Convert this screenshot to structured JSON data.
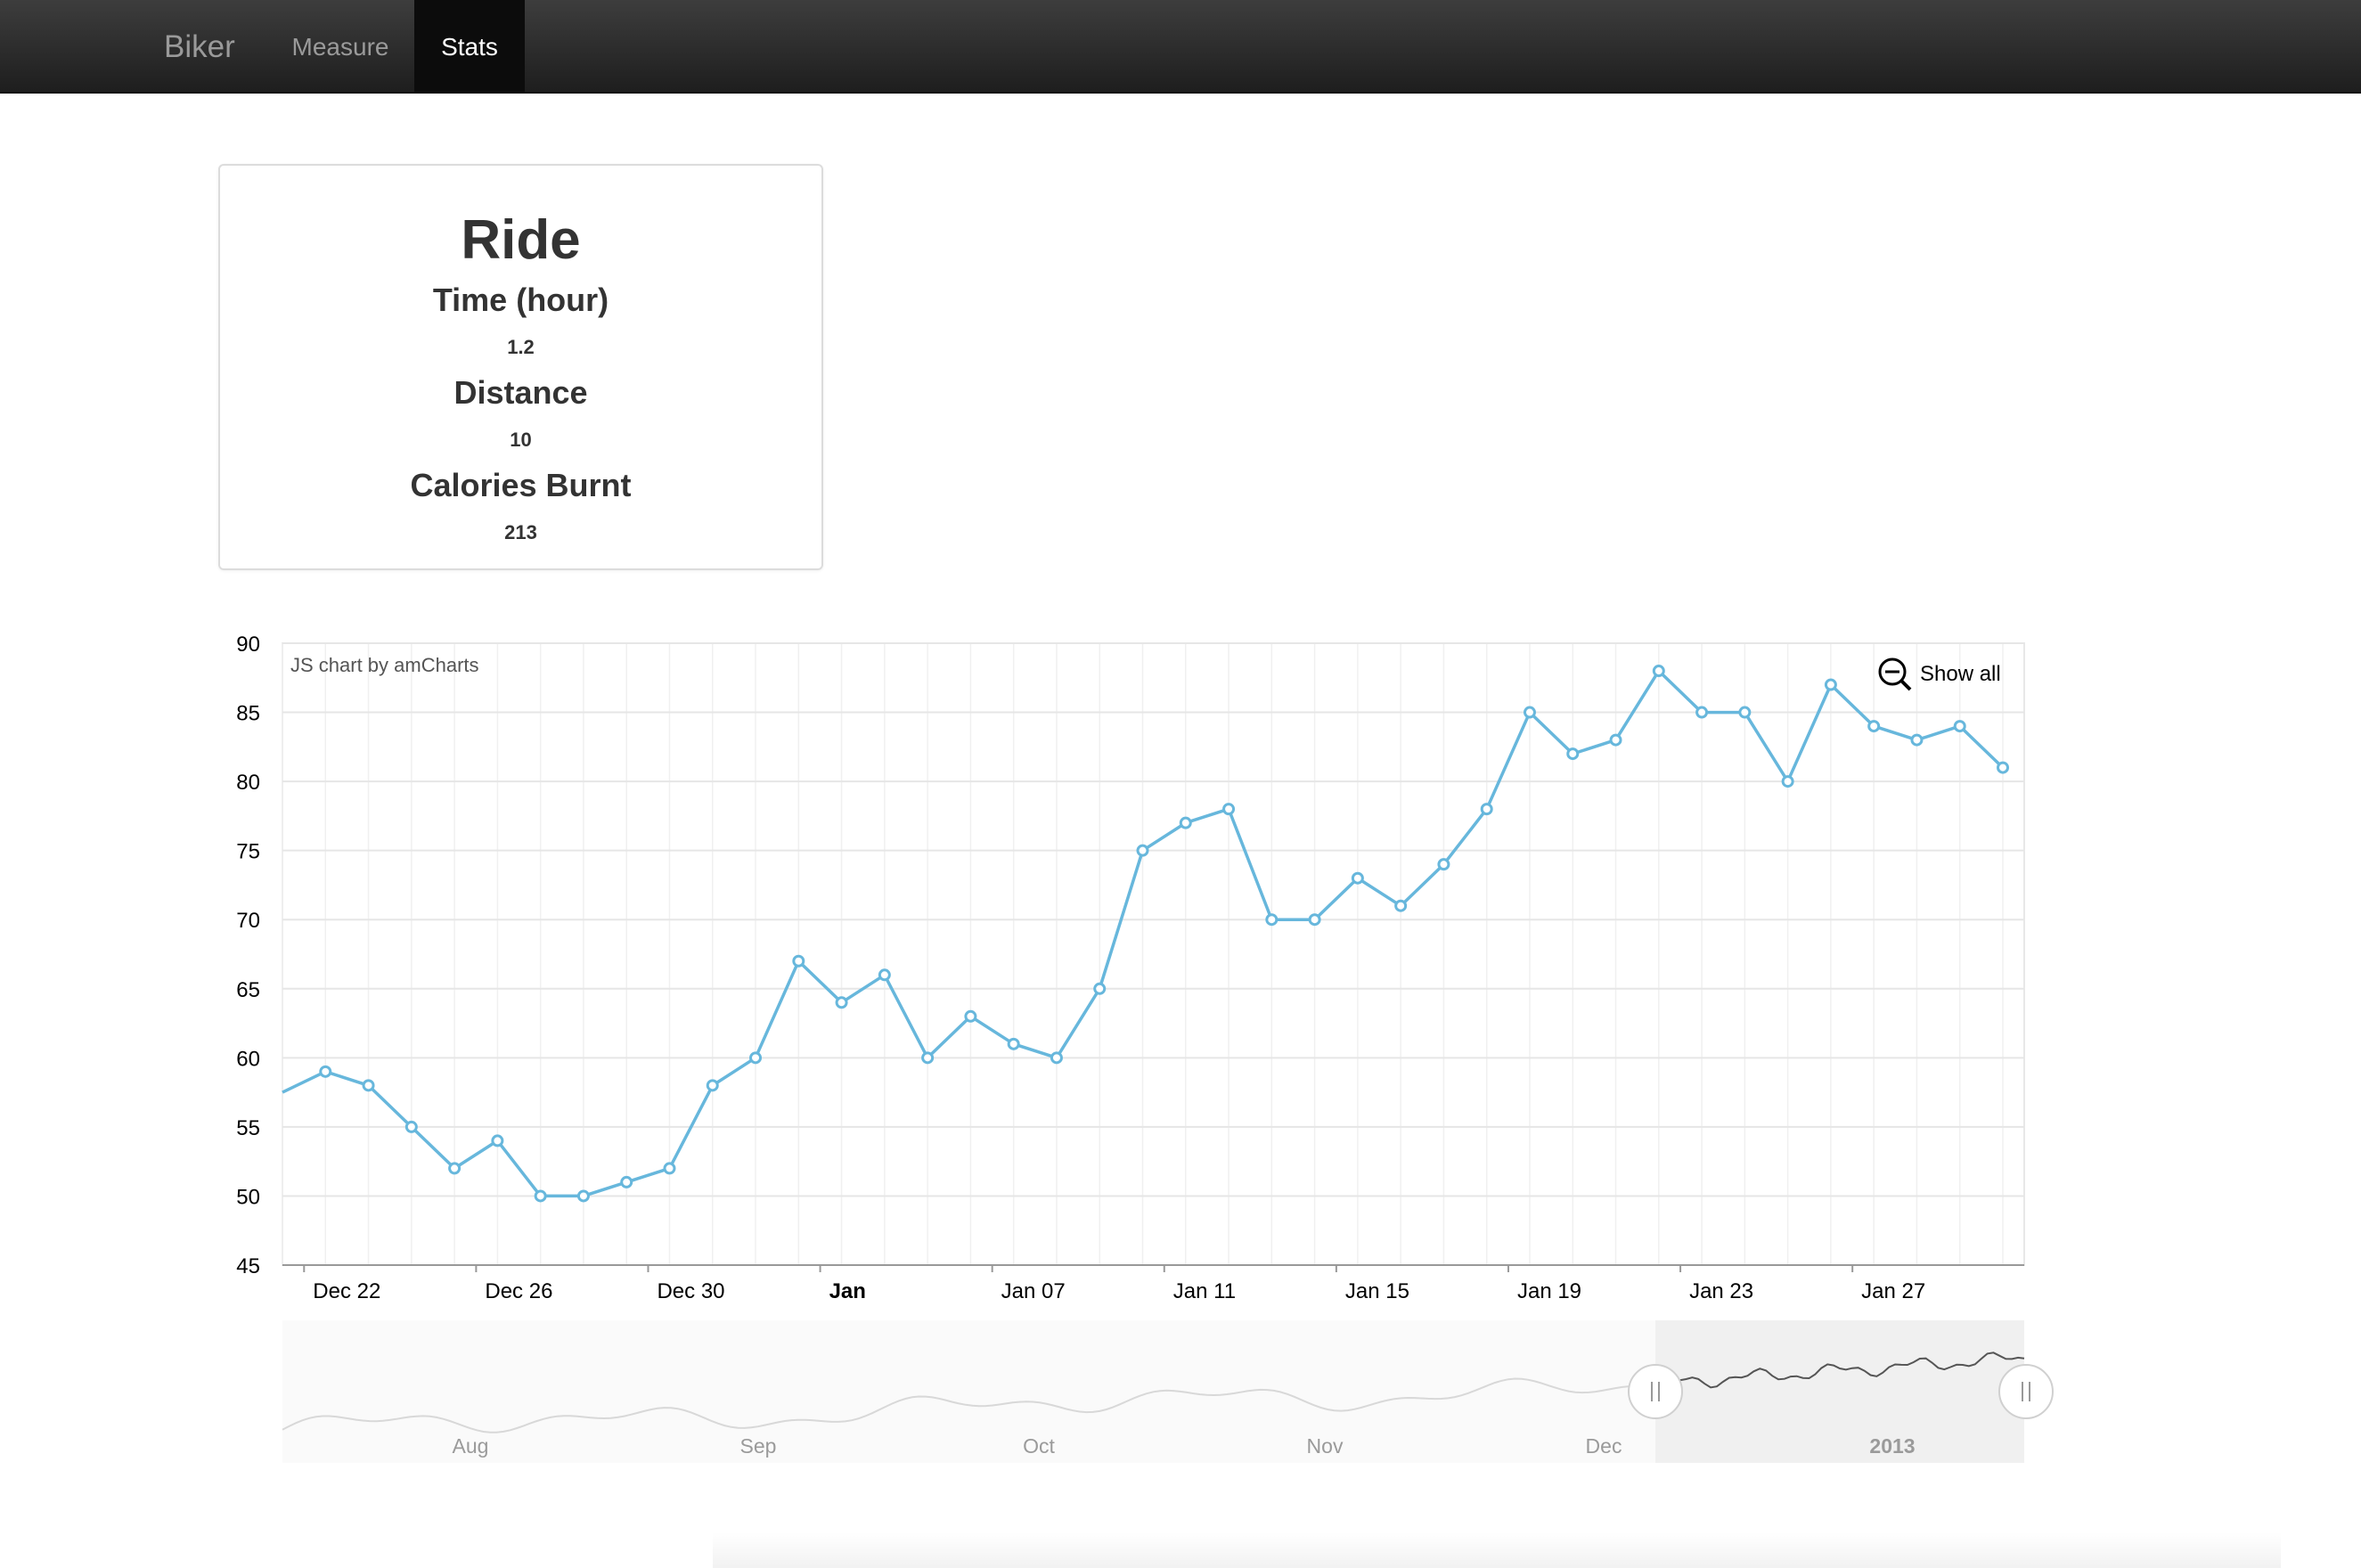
{
  "nav": {
    "brand": "Biker",
    "items": [
      {
        "label": "Measure"
      },
      {
        "label": "Stats"
      }
    ]
  },
  "card": {
    "title": "Ride",
    "stats": [
      {
        "label": "Time (hour)",
        "value": "1.2"
      },
      {
        "label": "Distance",
        "value": "10"
      },
      {
        "label": "Calories Burnt",
        "value": "213"
      }
    ]
  },
  "chart": {
    "credit": "JS chart by amCharts",
    "show_all_label": "Show all",
    "show_all_icon": "zoom-out-icon",
    "line_color": "#67b7dc"
  },
  "chart_data": {
    "type": "line",
    "title": "",
    "xlabel": "",
    "ylabel": "",
    "ylim": [
      45,
      90
    ],
    "y_ticks": [
      45,
      50,
      55,
      60,
      65,
      70,
      75,
      80,
      85,
      90
    ],
    "x_tick_labels": [
      "Dec 22",
      "Dec 26",
      "Dec 30",
      "Jan",
      "Jan 07",
      "Jan 11",
      "Jan 15",
      "Jan 19",
      "Jan 23",
      "Jan 27"
    ],
    "x_range": [
      "2012-12-21",
      "2013-01-30"
    ],
    "grid": true,
    "series": [
      {
        "x": [
          "2012-12-21",
          "2012-12-22",
          "2012-12-23",
          "2012-12-24",
          "2012-12-25",
          "2012-12-26",
          "2012-12-27",
          "2012-12-28",
          "2012-12-29",
          "2012-12-30",
          "2012-12-31",
          "2013-01-01",
          "2013-01-02",
          "2013-01-03",
          "2013-01-04",
          "2013-01-05",
          "2013-01-06",
          "2013-01-07",
          "2013-01-08",
          "2013-01-09",
          "2013-01-10",
          "2013-01-11",
          "2013-01-12",
          "2013-01-13",
          "2013-01-14",
          "2013-01-15",
          "2013-01-16",
          "2013-01-17",
          "2013-01-18",
          "2013-01-19",
          "2013-01-20",
          "2013-01-21",
          "2013-01-22",
          "2013-01-23",
          "2013-01-24",
          "2013-01-25",
          "2013-01-26",
          "2013-01-27",
          "2013-01-28",
          "2013-01-29",
          "2013-01-30"
        ],
        "values": [
          57.5,
          59,
          58,
          55,
          52,
          54,
          50,
          50,
          51,
          52,
          58,
          60,
          67,
          64,
          66,
          60,
          63,
          61,
          60,
          65,
          75,
          77,
          78,
          70,
          70,
          73,
          71,
          74,
          78,
          85,
          82,
          83,
          88,
          85,
          85,
          80,
          87,
          84,
          83,
          84,
          81
        ]
      }
    ],
    "navigator": {
      "labels": [
        "Aug",
        "Sep",
        "Oct",
        "Nov",
        "Dec",
        "2013"
      ],
      "selected_range": [
        "2012-12-21",
        "2013-01-30"
      ]
    }
  }
}
